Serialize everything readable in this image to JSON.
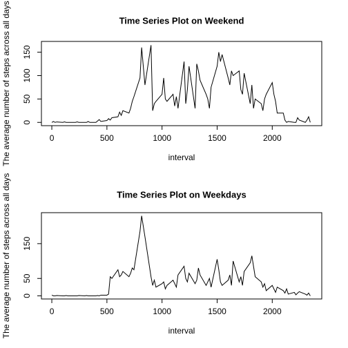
{
  "chart_data": [
    {
      "type": "line",
      "title": "Time Series Plot on Weekend",
      "xlabel": "interval",
      "ylabel": "The average number of steps across all days",
      "x": [
        0,
        15,
        30,
        45,
        100,
        115,
        130,
        145,
        200,
        215,
        230,
        245,
        300,
        315,
        330,
        345,
        400,
        415,
        430,
        445,
        500,
        515,
        530,
        545,
        600,
        615,
        630,
        645,
        700,
        715,
        730,
        745,
        800,
        815,
        830,
        845,
        900,
        915,
        930,
        945,
        1000,
        1015,
        1030,
        1045,
        1100,
        1115,
        1130,
        1145,
        1200,
        1215,
        1230,
        1245,
        1300,
        1315,
        1330,
        1345,
        1400,
        1415,
        1430,
        1445,
        1500,
        1515,
        1530,
        1545,
        1600,
        1615,
        1630,
        1645,
        1700,
        1715,
        1730,
        1745,
        1800,
        1815,
        1830,
        1845,
        1900,
        1915,
        1930,
        1945,
        2000,
        2015,
        2030,
        2045,
        2100,
        2115,
        2130,
        2145,
        2200,
        2215,
        2230,
        2245,
        2300,
        2315,
        2330,
        2345
      ],
      "series": [
        {
          "name": "steps",
          "color": "#000000",
          "values": [
            0,
            2,
            0,
            1,
            0,
            1,
            0,
            0,
            0,
            0,
            1,
            0,
            0,
            0,
            2,
            0,
            0,
            3,
            6,
            2,
            4,
            8,
            5,
            10,
            12,
            22,
            15,
            25,
            20,
            30,
            45,
            55,
            95,
            160,
            120,
            80,
            165,
            25,
            40,
            45,
            60,
            95,
            50,
            45,
            60,
            35,
            55,
            30,
            130,
            40,
            70,
            120,
            30,
            125,
            110,
            90,
            60,
            50,
            30,
            75,
            120,
            150,
            130,
            145,
            95,
            80,
            110,
            100,
            110,
            70,
            60,
            105,
            40,
            80,
            30,
            50,
            40,
            25,
            50,
            60,
            85,
            60,
            45,
            20,
            20,
            5,
            0,
            2,
            0,
            0,
            10,
            5,
            0,
            5,
            12,
            0
          ]
        }
      ],
      "xlim": [
        -94.2,
        2449.2
      ],
      "ylim": [
        -7,
        173
      ],
      "xticks": [
        0,
        500,
        1000,
        1500,
        2000
      ],
      "yticks": [
        0,
        50,
        100,
        150
      ]
    },
    {
      "type": "line",
      "title": "Time Series Plot on Weekdays",
      "xlabel": "interval",
      "ylabel": "The average number of steps across all days",
      "x": [
        0,
        15,
        30,
        45,
        100,
        115,
        130,
        145,
        200,
        215,
        230,
        245,
        300,
        315,
        330,
        345,
        400,
        415,
        430,
        445,
        500,
        515,
        530,
        545,
        600,
        615,
        630,
        645,
        700,
        715,
        730,
        745,
        800,
        815,
        830,
        845,
        900,
        915,
        930,
        945,
        1000,
        1015,
        1030,
        1045,
        1100,
        1115,
        1130,
        1145,
        1200,
        1215,
        1230,
        1245,
        1300,
        1315,
        1330,
        1345,
        1400,
        1415,
        1430,
        1445,
        1500,
        1515,
        1530,
        1545,
        1600,
        1615,
        1630,
        1645,
        1700,
        1715,
        1730,
        1745,
        1800,
        1815,
        1830,
        1845,
        1900,
        1915,
        1930,
        1945,
        2000,
        2015,
        2030,
        2045,
        2100,
        2115,
        2130,
        2145,
        2200,
        2215,
        2230,
        2245,
        2300,
        2315,
        2330,
        2345
      ],
      "series": [
        {
          "name": "steps",
          "color": "#000000",
          "values": [
            2,
            0,
            0,
            1,
            0,
            0,
            1,
            0,
            0,
            0,
            0,
            1,
            0,
            1,
            0,
            0,
            0,
            1,
            0,
            2,
            2,
            5,
            55,
            50,
            75,
            55,
            60,
            70,
            55,
            65,
            80,
            75,
            185,
            230,
            200,
            170,
            55,
            30,
            45,
            25,
            35,
            40,
            20,
            30,
            45,
            35,
            25,
            60,
            85,
            50,
            40,
            65,
            35,
            45,
            80,
            60,
            30,
            40,
            50,
            25,
            105,
            75,
            40,
            30,
            45,
            60,
            30,
            100,
            40,
            55,
            30,
            70,
            95,
            115,
            85,
            55,
            40,
            25,
            35,
            15,
            30,
            20,
            10,
            25,
            15,
            8,
            20,
            5,
            10,
            3,
            8,
            12,
            5,
            2,
            8,
            0
          ]
        }
      ],
      "xlim": [
        -94.2,
        2449.2
      ],
      "ylim": [
        -9,
        239
      ],
      "xticks": [
        0,
        500,
        1000,
        1500,
        2000
      ],
      "yticks": [
        0,
        50,
        150
      ]
    }
  ]
}
